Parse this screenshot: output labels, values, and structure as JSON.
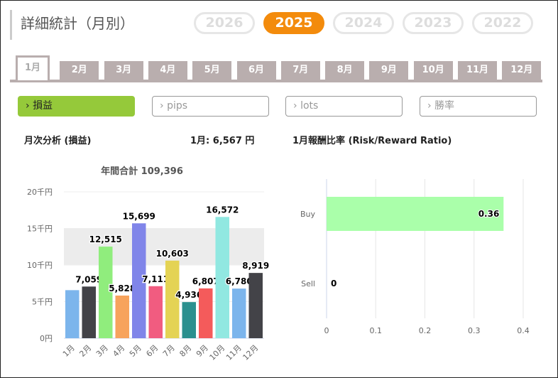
{
  "header": {
    "title": "詳細統計（月別）",
    "years": [
      "2026",
      "2025",
      "2024",
      "2023",
      "2022"
    ],
    "active_year": "2025"
  },
  "tabs": [
    "1月",
    "2月",
    "3月",
    "4月",
    "5月",
    "6月",
    "7月",
    "8月",
    "9月",
    "10月",
    "11月",
    "12月"
  ],
  "active_tab": "1月",
  "metrics": [
    {
      "label": "損益",
      "active": true
    },
    {
      "label": "pips"
    },
    {
      "label": "lots"
    },
    {
      "label": "勝率"
    }
  ],
  "left_panel": {
    "title": "月次分析 (損益)",
    "summary": "1月:  6,567 円"
  },
  "right_panel": {
    "title": "1月報酬比率 (Risk/Reward Ratio)"
  },
  "chart_data": [
    {
      "type": "bar",
      "title": "年間合計 109,396",
      "categories": [
        "1月",
        "2月",
        "3月",
        "4月",
        "5月",
        "6月",
        "7月",
        "8月",
        "9月",
        "10月",
        "11月",
        "12月"
      ],
      "values": [
        6567,
        7059,
        12515,
        5828,
        15699,
        7111,
        10603,
        4936,
        6807,
        16572,
        6780,
        8919
      ],
      "data_labels": [
        "",
        "7,059",
        "12,515",
        "5,828",
        "15,699",
        "7,111",
        "10,603",
        "4,936",
        "6,807",
        "16,572",
        "6,780",
        "8,919"
      ],
      "colors": [
        "#7cb5ec",
        "#434348",
        "#90ed7d",
        "#f7a35c",
        "#8085e9",
        "#f15c80",
        "#e4d354",
        "#2b908f",
        "#f45b5b",
        "#91e8e1",
        "#7cb5ec",
        "#434348"
      ],
      "yticks": [
        "0円",
        "5千円",
        "10千円",
        "15千円",
        "20千円"
      ],
      "ylim": [
        0,
        20000
      ],
      "plot_band": [
        10000,
        15000
      ],
      "grid": true
    },
    {
      "type": "bar",
      "orientation": "horizontal",
      "categories": [
        "Buy",
        "Sell"
      ],
      "values": [
        0.36,
        0
      ],
      "data_labels": [
        "0.36",
        "0"
      ],
      "color": "#aaffaa",
      "xticks": [
        "0",
        "0.1",
        "0.2",
        "0.3",
        "0.4"
      ],
      "xlim": [
        0,
        0.4
      ],
      "grid": true
    }
  ]
}
